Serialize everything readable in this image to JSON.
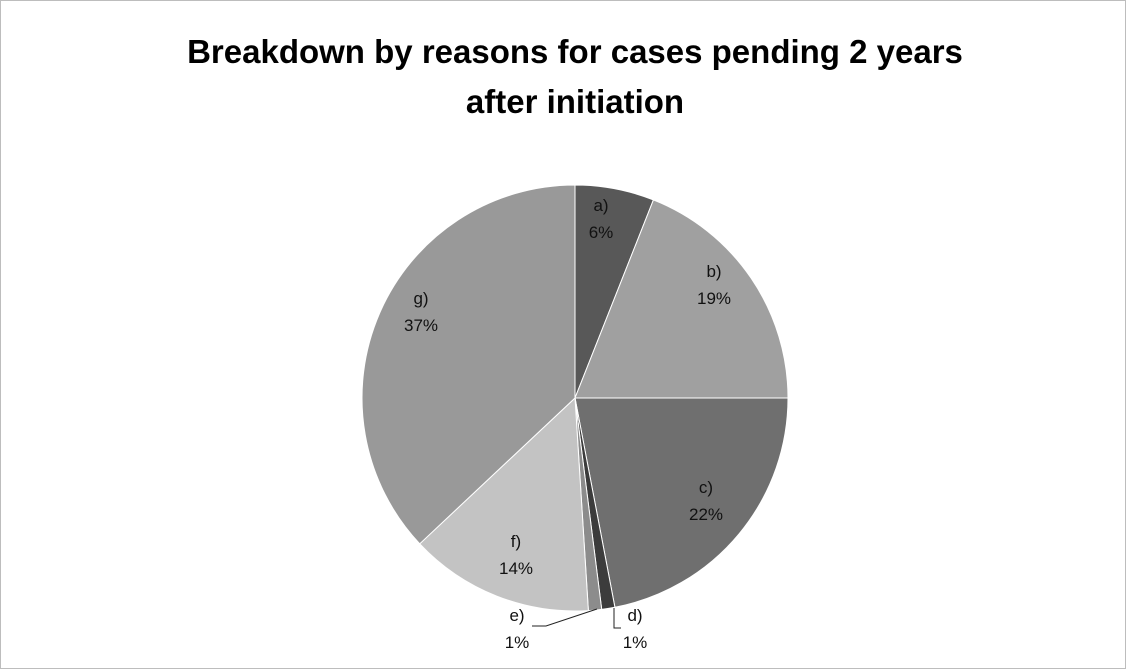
{
  "chart_data": {
    "type": "pie",
    "title": "Breakdown by reasons for cases pending 2 years after initiation",
    "title_lines": [
      "Breakdown by reasons for cases pending 2 years",
      "after initiation"
    ],
    "start_angle_deg": 0,
    "direction": "clockwise",
    "slices": [
      {
        "label": "a)",
        "value": 6,
        "value_label": "6%",
        "color": "#585858"
      },
      {
        "label": "b)",
        "value": 19,
        "value_label": "19%",
        "color": "#a0a0a0"
      },
      {
        "label": "c)",
        "value": 22,
        "value_label": "22%",
        "color": "#6f6f6f"
      },
      {
        "label": "d)",
        "value": 1,
        "value_label": "1%",
        "color": "#3c3c3c"
      },
      {
        "label": "e)",
        "value": 1,
        "value_label": "1%",
        "color": "#8c8c8c"
      },
      {
        "label": "f)",
        "value": 14,
        "value_label": "14%",
        "color": "#c3c3c3"
      },
      {
        "label": "g)",
        "value": 37,
        "value_label": "37%",
        "color": "#999999"
      }
    ]
  }
}
